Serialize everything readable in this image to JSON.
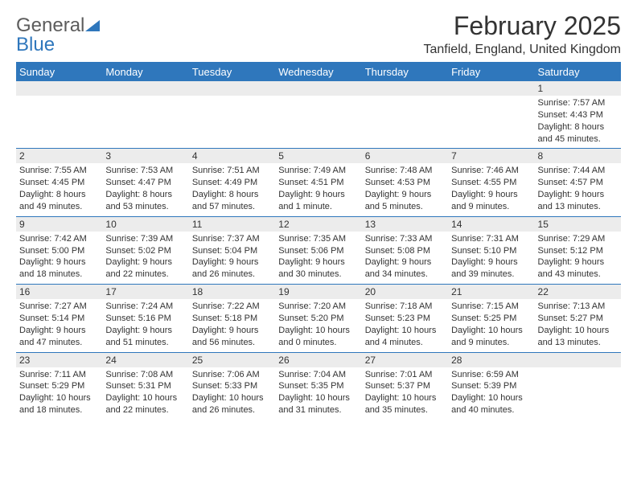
{
  "logo": {
    "line1": "General",
    "line2": "Blue",
    "color1": "#5c5c5c",
    "color2": "#2f77bc"
  },
  "title": "February 2025",
  "location": "Tanfield, England, United Kingdom",
  "colors": {
    "headerBg": "#2f77bc",
    "headerText": "#ffffff",
    "dayRowBg": "#ececec",
    "border": "#2f77bc",
    "text": "#333333"
  },
  "dayHeaders": [
    "Sunday",
    "Monday",
    "Tuesday",
    "Wednesday",
    "Thursday",
    "Friday",
    "Saturday"
  ],
  "weeks": [
    [
      null,
      null,
      null,
      null,
      null,
      null,
      {
        "d": "1",
        "sr": "7:57 AM",
        "ss": "4:43 PM",
        "dl": "8 hours and 45 minutes."
      }
    ],
    [
      {
        "d": "2",
        "sr": "7:55 AM",
        "ss": "4:45 PM",
        "dl": "8 hours and 49 minutes."
      },
      {
        "d": "3",
        "sr": "7:53 AM",
        "ss": "4:47 PM",
        "dl": "8 hours and 53 minutes."
      },
      {
        "d": "4",
        "sr": "7:51 AM",
        "ss": "4:49 PM",
        "dl": "8 hours and 57 minutes."
      },
      {
        "d": "5",
        "sr": "7:49 AM",
        "ss": "4:51 PM",
        "dl": "9 hours and 1 minute."
      },
      {
        "d": "6",
        "sr": "7:48 AM",
        "ss": "4:53 PM",
        "dl": "9 hours and 5 minutes."
      },
      {
        "d": "7",
        "sr": "7:46 AM",
        "ss": "4:55 PM",
        "dl": "9 hours and 9 minutes."
      },
      {
        "d": "8",
        "sr": "7:44 AM",
        "ss": "4:57 PM",
        "dl": "9 hours and 13 minutes."
      }
    ],
    [
      {
        "d": "9",
        "sr": "7:42 AM",
        "ss": "5:00 PM",
        "dl": "9 hours and 18 minutes."
      },
      {
        "d": "10",
        "sr": "7:39 AM",
        "ss": "5:02 PM",
        "dl": "9 hours and 22 minutes."
      },
      {
        "d": "11",
        "sr": "7:37 AM",
        "ss": "5:04 PM",
        "dl": "9 hours and 26 minutes."
      },
      {
        "d": "12",
        "sr": "7:35 AM",
        "ss": "5:06 PM",
        "dl": "9 hours and 30 minutes."
      },
      {
        "d": "13",
        "sr": "7:33 AM",
        "ss": "5:08 PM",
        "dl": "9 hours and 34 minutes."
      },
      {
        "d": "14",
        "sr": "7:31 AM",
        "ss": "5:10 PM",
        "dl": "9 hours and 39 minutes."
      },
      {
        "d": "15",
        "sr": "7:29 AM",
        "ss": "5:12 PM",
        "dl": "9 hours and 43 minutes."
      }
    ],
    [
      {
        "d": "16",
        "sr": "7:27 AM",
        "ss": "5:14 PM",
        "dl": "9 hours and 47 minutes."
      },
      {
        "d": "17",
        "sr": "7:24 AM",
        "ss": "5:16 PM",
        "dl": "9 hours and 51 minutes."
      },
      {
        "d": "18",
        "sr": "7:22 AM",
        "ss": "5:18 PM",
        "dl": "9 hours and 56 minutes."
      },
      {
        "d": "19",
        "sr": "7:20 AM",
        "ss": "5:20 PM",
        "dl": "10 hours and 0 minutes."
      },
      {
        "d": "20",
        "sr": "7:18 AM",
        "ss": "5:23 PM",
        "dl": "10 hours and 4 minutes."
      },
      {
        "d": "21",
        "sr": "7:15 AM",
        "ss": "5:25 PM",
        "dl": "10 hours and 9 minutes."
      },
      {
        "d": "22",
        "sr": "7:13 AM",
        "ss": "5:27 PM",
        "dl": "10 hours and 13 minutes."
      }
    ],
    [
      {
        "d": "23",
        "sr": "7:11 AM",
        "ss": "5:29 PM",
        "dl": "10 hours and 18 minutes."
      },
      {
        "d": "24",
        "sr": "7:08 AM",
        "ss": "5:31 PM",
        "dl": "10 hours and 22 minutes."
      },
      {
        "d": "25",
        "sr": "7:06 AM",
        "ss": "5:33 PM",
        "dl": "10 hours and 26 minutes."
      },
      {
        "d": "26",
        "sr": "7:04 AM",
        "ss": "5:35 PM",
        "dl": "10 hours and 31 minutes."
      },
      {
        "d": "27",
        "sr": "7:01 AM",
        "ss": "5:37 PM",
        "dl": "10 hours and 35 minutes."
      },
      {
        "d": "28",
        "sr": "6:59 AM",
        "ss": "5:39 PM",
        "dl": "10 hours and 40 minutes."
      },
      null
    ]
  ],
  "labels": {
    "sunrise": "Sunrise:",
    "sunset": "Sunset:",
    "daylight": "Daylight:"
  }
}
